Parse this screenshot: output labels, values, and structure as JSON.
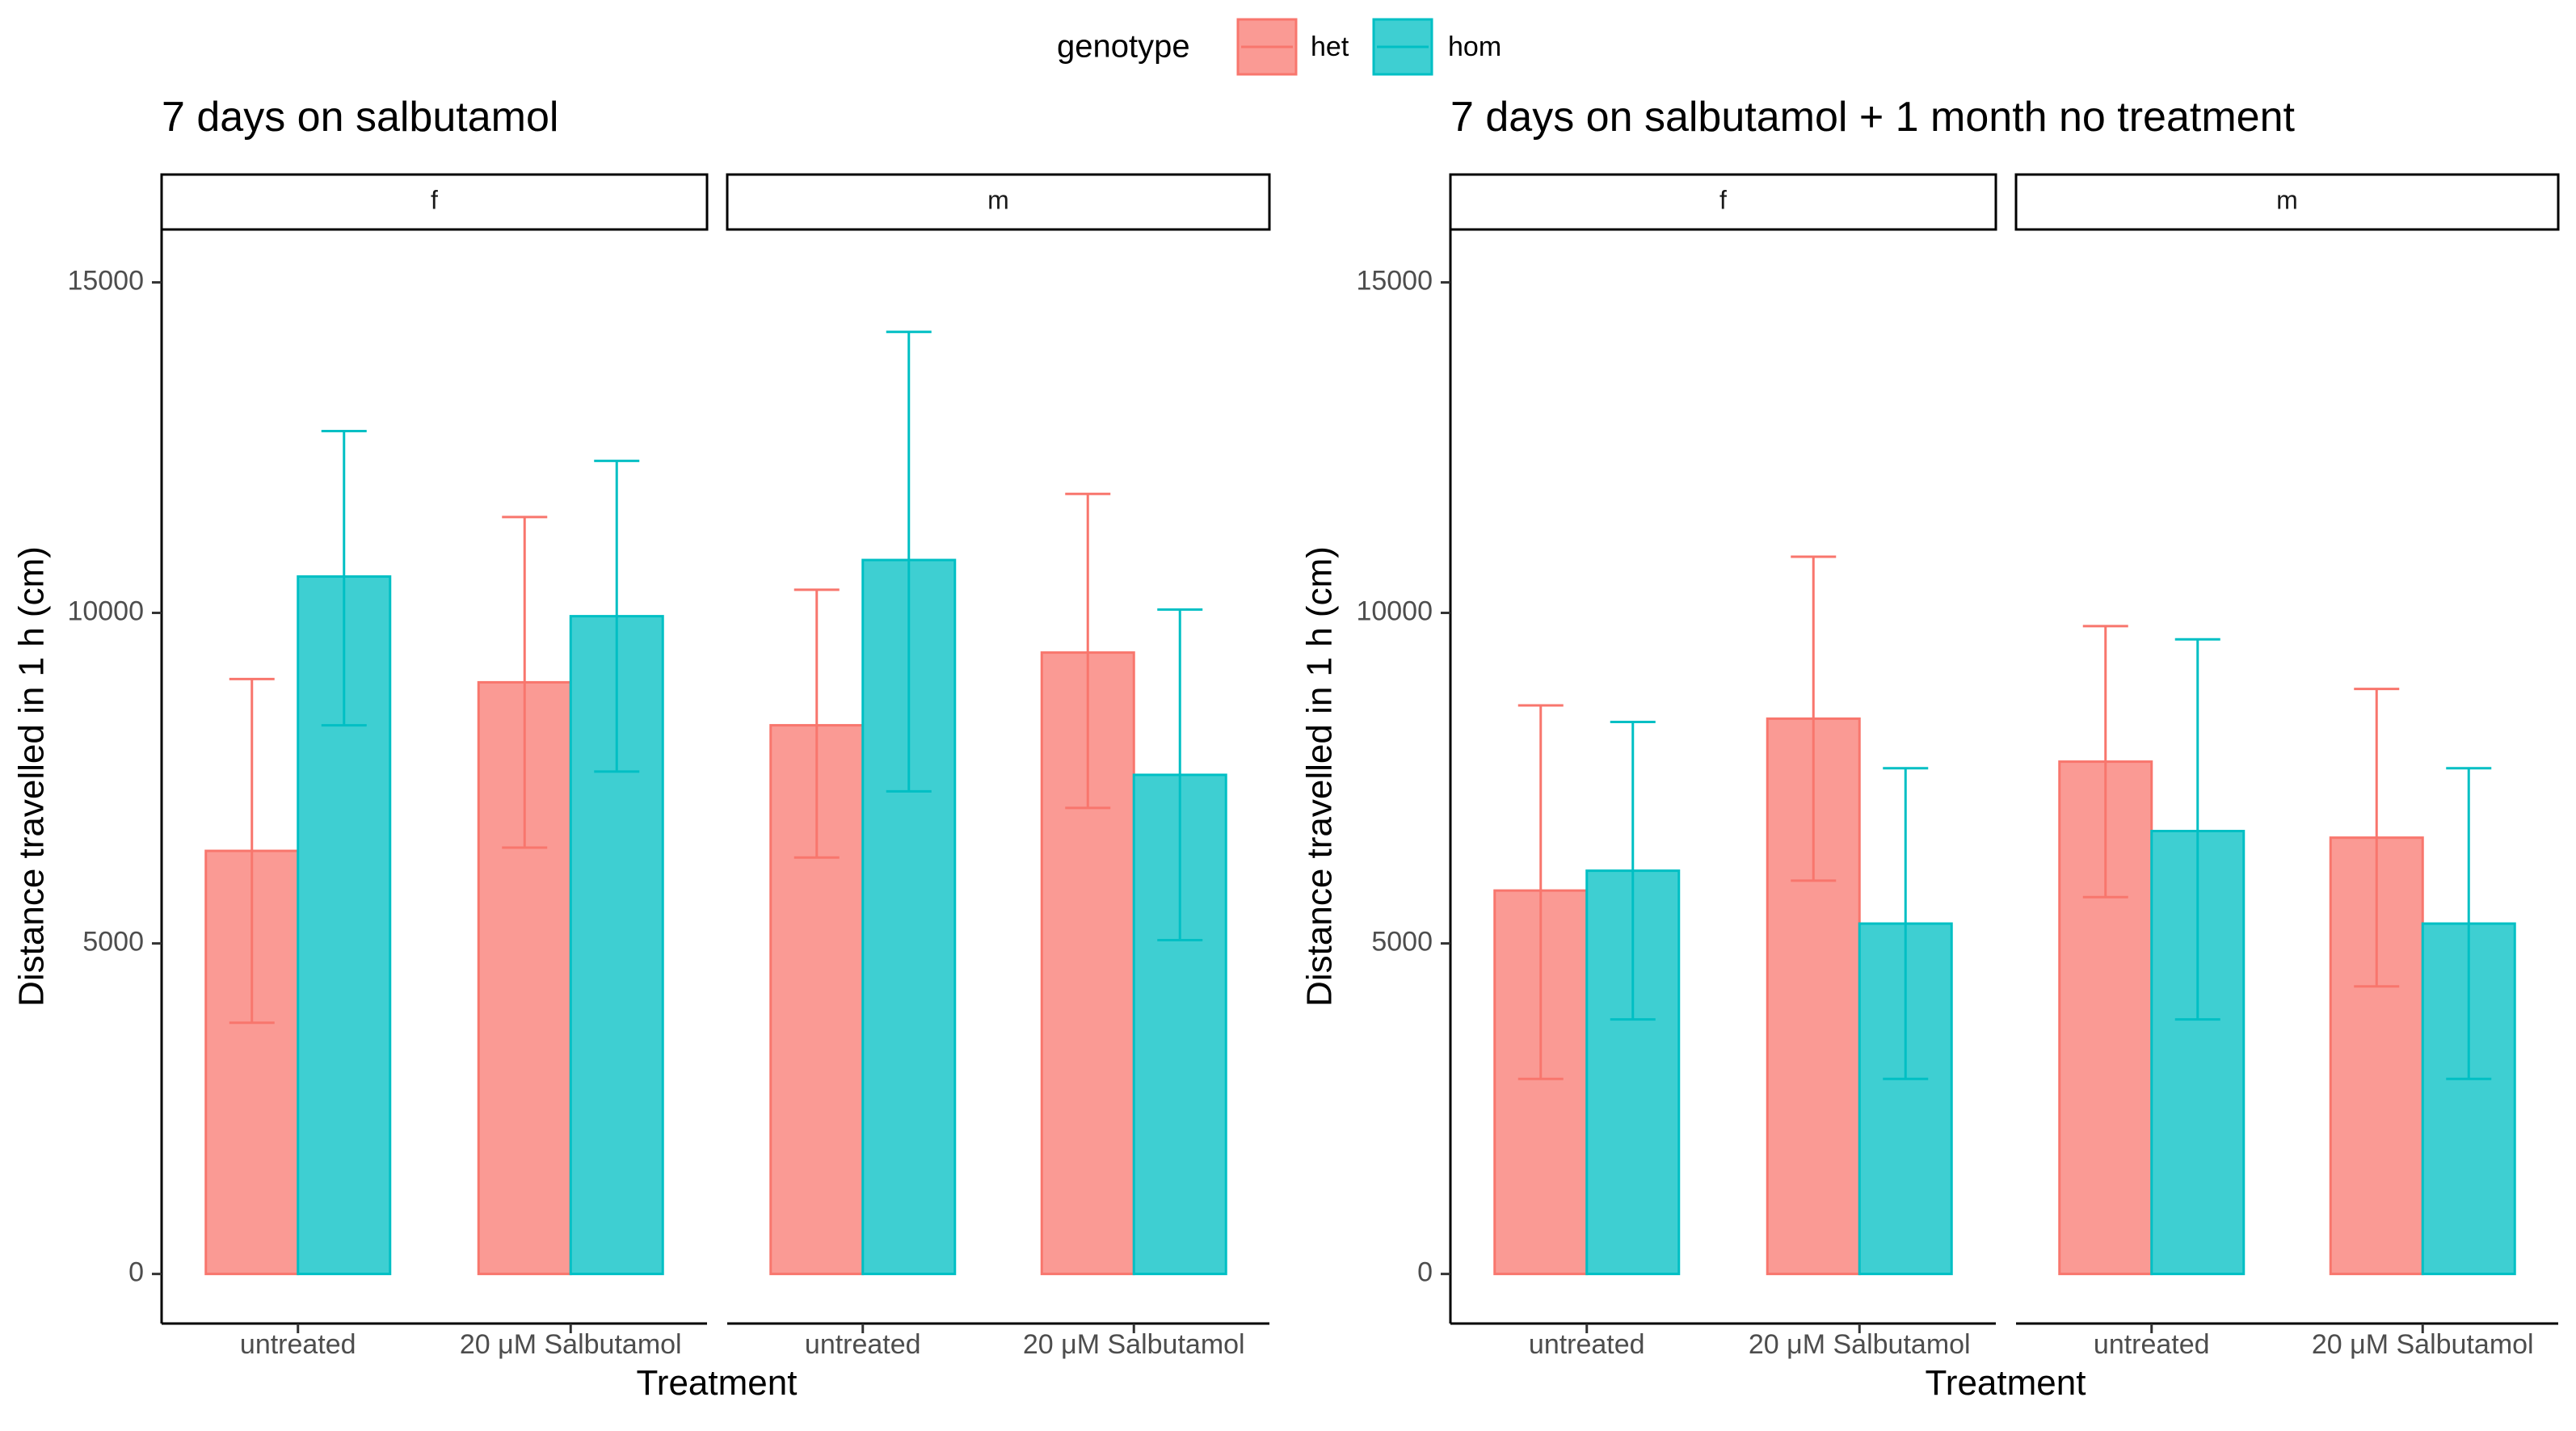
{
  "legend": {
    "title": "genotype",
    "items": [
      {
        "label": "het",
        "fill": "#F8766D",
        "fill_light": "#FA9A94"
      },
      {
        "label": "hom",
        "fill": "#00BFC4",
        "fill_light": "#3ECFD2"
      }
    ]
  },
  "chart_data": [
    {
      "type": "bar",
      "title": "7 days on salbutamol",
      "xlabel": "Treatment",
      "ylabel": "Distance travelled in 1 h (cm)",
      "ylim": [
        -750,
        15800
      ],
      "yticks": [
        0,
        5000,
        10000,
        15000
      ],
      "grid": false,
      "legend_position": "top",
      "facets": [
        {
          "label": "f",
          "categories": [
            "untreated",
            "20 μM Salbutamol"
          ],
          "series": [
            {
              "name": "het",
              "values": [
                6400,
                8950
              ],
              "err_low": [
                3800,
                6450
              ],
              "err_high": [
                9000,
                11450
              ]
            },
            {
              "name": "hom",
              "values": [
                10550,
                9950
              ],
              "err_low": [
                8300,
                7600
              ],
              "err_high": [
                12750,
                12300
              ]
            }
          ]
        },
        {
          "label": "m",
          "categories": [
            "untreated",
            "20 μM Salbutamol"
          ],
          "series": [
            {
              "name": "het",
              "values": [
                8300,
                9400
              ],
              "err_low": [
                6300,
                7050
              ],
              "err_high": [
                10350,
                11800
              ]
            },
            {
              "name": "hom",
              "values": [
                10800,
                7550
              ],
              "err_low": [
                7300,
                5050
              ],
              "err_high": [
                14250,
                10050
              ]
            }
          ]
        }
      ]
    },
    {
      "type": "bar",
      "title": "7 days on salbutamol + 1 month no treatment",
      "xlabel": "Treatment",
      "ylabel": "Distance travelled in 1 h (cm)",
      "ylim": [
        -750,
        15800
      ],
      "yticks": [
        0,
        5000,
        10000,
        15000
      ],
      "grid": false,
      "legend_position": "top",
      "facets": [
        {
          "label": "f",
          "categories": [
            "untreated",
            "20 μM Salbutamol"
          ],
          "series": [
            {
              "name": "het",
              "values": [
                5800,
                8400
              ],
              "err_low": [
                2950,
                5950
              ],
              "err_high": [
                8600,
                10850
              ]
            },
            {
              "name": "hom",
              "values": [
                6100,
                5300
              ],
              "err_low": [
                3850,
                2950
              ],
              "err_high": [
                8350,
                7650
              ]
            }
          ]
        },
        {
          "label": "m",
          "categories": [
            "untreated",
            "20 μM Salbutamol"
          ],
          "series": [
            {
              "name": "het",
              "values": [
                7750,
                6600
              ],
              "err_low": [
                5700,
                4350
              ],
              "err_high": [
                9800,
                8850
              ]
            },
            {
              "name": "hom",
              "values": [
                6700,
                5300
              ],
              "err_low": [
                3850,
                2950
              ],
              "err_high": [
                9600,
                7650
              ]
            }
          ]
        }
      ]
    }
  ]
}
